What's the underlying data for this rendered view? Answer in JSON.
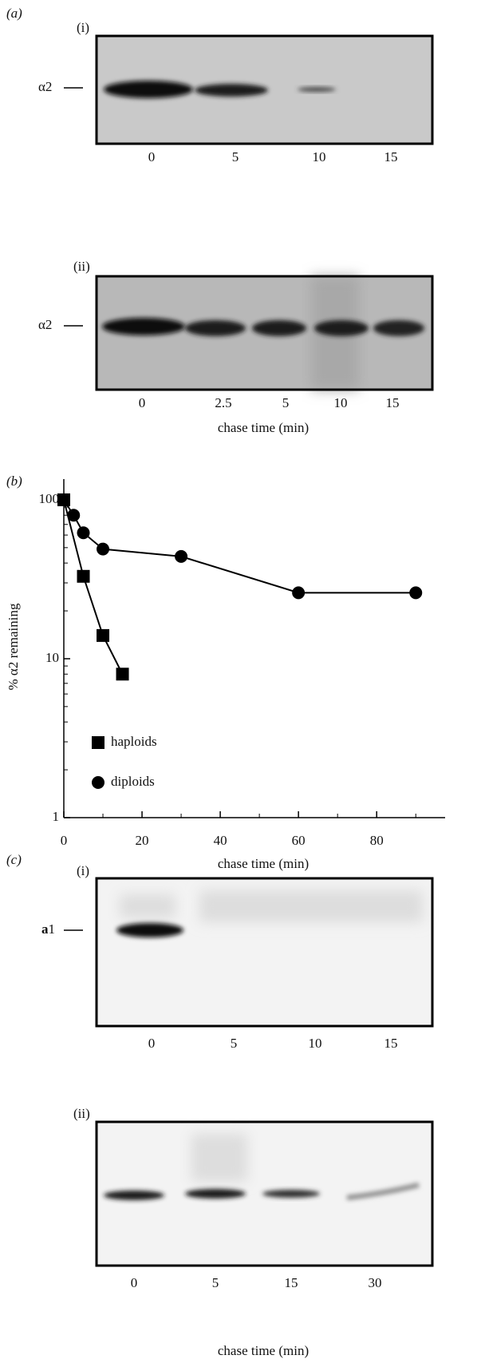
{
  "panel_a": {
    "label": "(a)",
    "blot_i": {
      "label": "(i)",
      "marker": "α2",
      "lanes": [
        "0",
        "5",
        "10",
        "15"
      ]
    },
    "blot_ii": {
      "label": "(ii)",
      "marker": "α2",
      "lanes": [
        "0",
        "2.5",
        "5",
        "10",
        "15"
      ],
      "x_label": "chase time (min)"
    }
  },
  "panel_b": {
    "label": "(b)"
  },
  "chart_data": {
    "type": "line",
    "x_label": "chase time (min)",
    "y_label": "% α2 remaining",
    "log_y": true,
    "xlim": [
      0,
      97.5
    ],
    "ylim": [
      1,
      135
    ],
    "xticks": [
      0,
      20,
      40,
      60,
      80
    ],
    "yticks": [
      1,
      10,
      100
    ],
    "series": [
      {
        "name": "haploids",
        "color": "#000000",
        "marker": "square",
        "x": [
          0,
          5,
          10,
          15
        ],
        "values": [
          100,
          33,
          14,
          8
        ]
      },
      {
        "name": "diploids",
        "color": "#000000",
        "marker": "circle",
        "x": [
          0,
          2.5,
          5,
          10,
          30,
          60,
          90
        ],
        "values": [
          100,
          80,
          62,
          49,
          44,
          26,
          26
        ]
      }
    ]
  },
  "panel_c": {
    "label": "(c)",
    "blot_i": {
      "label": "(i)",
      "marker_bold": "a",
      "marker_rest": "1",
      "lanes": [
        "0",
        "5",
        "10",
        "15"
      ]
    },
    "blot_ii": {
      "label": "(ii)",
      "lanes": [
        "0",
        "5",
        "15",
        "30"
      ],
      "x_label": "chase time (min)"
    }
  }
}
